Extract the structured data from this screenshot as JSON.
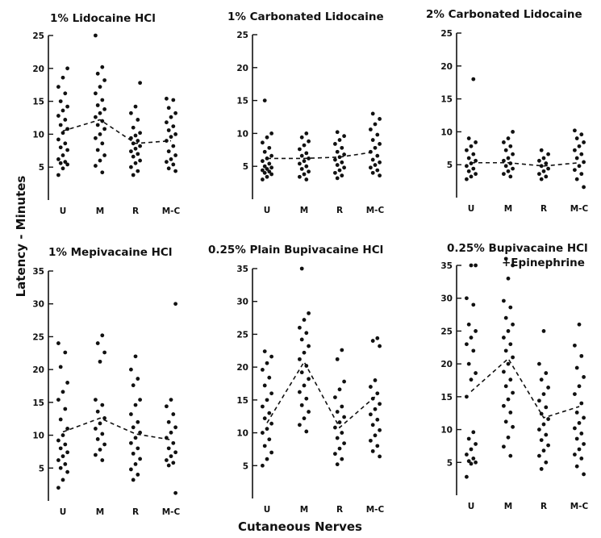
{
  "figure": {
    "ylabel": "Latency - Minutes",
    "xlabel": "Cutaneous Nerves"
  },
  "chart_data": [
    {
      "type": "scatter",
      "title": "1% Lidocaine HCl",
      "categories": [
        "U",
        "M",
        "R",
        "M-C"
      ],
      "ylim": [
        0,
        25
      ],
      "yticks": [
        5,
        10,
        15,
        20,
        25
      ],
      "means": [
        10.5,
        12.2,
        8.6,
        9.0
      ],
      "series": [
        {
          "values": [
            3.8,
            4.8,
            5.4,
            5.6,
            5.8,
            6.2,
            6.8,
            7.6,
            8.0,
            8.6,
            9.2,
            10.2,
            10.8,
            11.4,
            12.2,
            12.8,
            13.6,
            14.2,
            15.0,
            16.2,
            17.2,
            18.6,
            20.0
          ]
        },
        {
          "values": [
            4.2,
            5.2,
            6.0,
            6.8,
            7.6,
            8.6,
            9.4,
            10.0,
            10.8,
            11.4,
            12.0,
            12.6,
            13.2,
            13.8,
            14.4,
            15.2,
            16.2,
            17.2,
            18.2,
            19.2,
            20.2,
            25.0
          ]
        },
        {
          "values": [
            3.8,
            4.4,
            5.0,
            5.6,
            6.0,
            6.6,
            7.0,
            7.4,
            7.8,
            8.2,
            8.6,
            9.0,
            9.4,
            9.8,
            10.2,
            11.0,
            12.2,
            13.2,
            14.2,
            17.8
          ]
        },
        {
          "values": [
            4.4,
            4.8,
            5.4,
            5.8,
            6.2,
            6.8,
            7.4,
            8.2,
            9.0,
            9.6,
            10.0,
            10.6,
            11.2,
            11.8,
            12.6,
            13.2,
            14.0,
            15.2,
            15.4
          ]
        }
      ]
    },
    {
      "type": "scatter",
      "title": "1% Carbonated Lidocaine",
      "categories": [
        "U",
        "M",
        "R",
        "M-C"
      ],
      "ylim": [
        0,
        25
      ],
      "yticks": [
        5,
        10,
        15,
        20,
        25
      ],
      "means": [
        6.2,
        6.2,
        6.4,
        7.2
      ],
      "series": [
        {
          "values": [
            3.0,
            3.4,
            3.8,
            4.0,
            4.2,
            4.4,
            4.6,
            4.8,
            5.0,
            5.4,
            5.8,
            6.2,
            6.6,
            7.2,
            7.8,
            8.6,
            9.4,
            10.0,
            15.0
          ]
        },
        {
          "values": [
            3.0,
            3.4,
            3.8,
            4.2,
            4.6,
            5.0,
            5.4,
            5.8,
            6.2,
            6.6,
            7.0,
            7.6,
            8.2,
            8.8,
            9.4,
            10.0
          ]
        },
        {
          "values": [
            3.2,
            3.6,
            4.0,
            4.4,
            4.8,
            5.2,
            5.6,
            6.0,
            6.4,
            6.8,
            7.2,
            7.8,
            8.4,
            9.0,
            9.6,
            10.2
          ]
        },
        {
          "values": [
            3.6,
            4.0,
            4.4,
            4.8,
            5.2,
            5.6,
            6.0,
            6.6,
            7.2,
            7.8,
            8.4,
            9.0,
            9.8,
            10.6,
            11.4,
            12.2,
            13.0
          ]
        }
      ]
    },
    {
      "type": "scatter",
      "title": "2% Carbonated Lidocaine",
      "categories": [
        "U",
        "M",
        "R",
        "M-C"
      ],
      "ylim": [
        0,
        25
      ],
      "yticks": [
        5,
        10,
        15,
        20,
        25
      ],
      "means": [
        5.3,
        5.3,
        4.8,
        5.3
      ],
      "series": [
        {
          "values": [
            2.8,
            3.2,
            3.6,
            4.0,
            4.4,
            4.8,
            5.2,
            5.6,
            6.0,
            6.6,
            7.2,
            7.8,
            8.4,
            9.0,
            18.0
          ]
        },
        {
          "values": [
            3.2,
            3.6,
            4.0,
            4.4,
            4.8,
            5.2,
            5.6,
            6.0,
            6.6,
            7.2,
            7.8,
            8.4,
            9.0,
            10.0
          ]
        },
        {
          "values": [
            2.8,
            3.2,
            3.6,
            4.0,
            4.4,
            4.8,
            5.2,
            5.6,
            6.0,
            6.6,
            7.2
          ]
        },
        {
          "values": [
            1.6,
            2.8,
            3.6,
            4.2,
            4.8,
            5.4,
            6.0,
            6.6,
            7.2,
            7.8,
            8.4,
            9.0,
            9.6,
            10.2
          ]
        }
      ]
    },
    {
      "type": "scatter",
      "title": "1% Mepivacaine HCl",
      "categories": [
        "U",
        "M",
        "R",
        "M-C"
      ],
      "ylim": [
        0,
        35
      ],
      "yticks": [
        5,
        10,
        15,
        20,
        25,
        30,
        35
      ],
      "means": [
        10.5,
        12.6,
        10.2,
        9.3
      ],
      "series": [
        {
          "values": [
            2.0,
            3.2,
            4.4,
            5.0,
            5.6,
            6.2,
            6.8,
            7.4,
            8.0,
            8.6,
            9.2,
            10.0,
            11.0,
            12.4,
            14.0,
            15.4,
            16.6,
            18.0,
            20.4,
            22.6,
            24.0
          ]
        },
        {
          "values": [
            6.2,
            7.0,
            7.8,
            8.6,
            9.4,
            10.2,
            11.0,
            11.8,
            12.6,
            13.6,
            14.6,
            15.4,
            21.2,
            22.6,
            24.0,
            25.2
          ]
        },
        {
          "values": [
            3.2,
            4.0,
            4.8,
            5.6,
            6.4,
            7.2,
            8.0,
            8.8,
            9.6,
            10.4,
            11.2,
            12.0,
            13.2,
            14.6,
            15.4,
            17.6,
            18.6,
            20.0,
            22.0
          ]
        },
        {
          "values": [
            1.2,
            5.4,
            5.8,
            6.2,
            6.8,
            7.4,
            8.0,
            8.8,
            9.6,
            10.4,
            11.2,
            12.0,
            13.2,
            14.4,
            15.4,
            30.0
          ]
        }
      ]
    },
    {
      "type": "scatter",
      "title": "0.25% Plain Bupivacaine HCl",
      "categories": [
        "U",
        "M",
        "R",
        "M-C"
      ],
      "ylim": [
        0,
        35
      ],
      "yticks": [
        5,
        10,
        15,
        20,
        25,
        30,
        35
      ],
      "means": [
        11.5,
        20.8,
        10.8,
        15.5
      ],
      "series": [
        {
          "values": [
            5.0,
            6.0,
            7.0,
            8.0,
            9.0,
            10.0,
            10.6,
            11.4,
            12.2,
            13.0,
            14.0,
            15.0,
            16.0,
            17.2,
            18.4,
            19.6,
            20.6,
            21.6,
            22.4
          ]
        },
        {
          "values": [
            10.2,
            11.2,
            12.2,
            13.2,
            14.2,
            15.2,
            16.2,
            17.2,
            18.2,
            19.2,
            20.2,
            21.2,
            22.2,
            23.2,
            24.2,
            25.2,
            26.0,
            27.2,
            28.2,
            35.0
          ]
        },
        {
          "values": [
            5.2,
            6.0,
            6.8,
            7.6,
            8.4,
            9.2,
            10.0,
            10.8,
            11.6,
            12.4,
            13.2,
            14.0,
            15.4,
            16.6,
            17.8,
            21.2,
            22.6
          ]
        },
        {
          "values": [
            6.4,
            7.2,
            8.0,
            8.8,
            9.6,
            10.4,
            11.2,
            12.0,
            12.8,
            13.6,
            14.4,
            15.2,
            16.0,
            17.0,
            18.0,
            23.2,
            24.0,
            24.4
          ]
        }
      ]
    },
    {
      "type": "scatter",
      "title": "0.25% Bupivacaine HCl",
      "subtitle": "+Epinephrine",
      "categories": [
        "U",
        "M",
        "R",
        "M-C"
      ],
      "ylim": [
        0,
        35
      ],
      "yticks": [
        5,
        10,
        15,
        20,
        25,
        30,
        35
      ],
      "means": [
        15.8,
        20.8,
        11.8,
        13.5
      ],
      "series": [
        {
          "values": [
            2.8,
            4.8,
            5.0,
            5.2,
            5.6,
            6.2,
            7.0,
            7.8,
            8.6,
            9.6,
            15.0,
            17.6,
            18.6,
            20.0,
            22.0,
            23.0,
            24.0,
            25.0,
            26.0,
            29.0,
            30.0,
            35.0,
            35.0
          ]
        },
        {
          "values": [
            6.0,
            7.4,
            8.8,
            10.4,
            11.2,
            12.6,
            13.6,
            14.6,
            15.6,
            16.6,
            17.6,
            18.8,
            20.0,
            21.0,
            22.0,
            23.0,
            24.0,
            25.0,
            26.0,
            27.0,
            28.6,
            29.6,
            33.0,
            35.0,
            36.0
          ]
        },
        {
          "values": [
            4.0,
            5.0,
            6.0,
            6.8,
            7.6,
            8.4,
            9.2,
            10.0,
            10.8,
            11.6,
            12.4,
            13.4,
            14.4,
            15.4,
            16.4,
            17.6,
            18.6,
            20.0,
            25.0
          ]
        },
        {
          "values": [
            3.2,
            4.4,
            5.6,
            6.2,
            7.0,
            7.8,
            8.6,
            9.4,
            10.2,
            11.0,
            11.8,
            12.6,
            14.0,
            15.4,
            16.6,
            18.0,
            19.4,
            21.2,
            22.8,
            26.0
          ]
        }
      ]
    }
  ]
}
